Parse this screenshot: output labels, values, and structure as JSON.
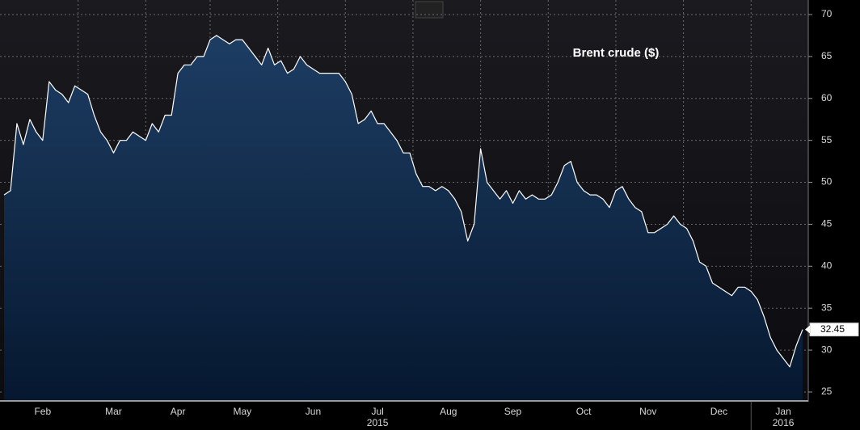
{
  "chart_data": {
    "type": "area",
    "annotation": "Brent crude ($)",
    "categories": [
      null,
      null,
      null,
      null,
      null,
      null,
      "Feb",
      null,
      null,
      null,
      null,
      null,
      null,
      null,
      null,
      null,
      null,
      "Mar",
      null,
      null,
      null,
      null,
      null,
      null,
      null,
      null,
      null,
      "Apr",
      null,
      null,
      null,
      null,
      null,
      null,
      null,
      null,
      null,
      "May",
      null,
      null,
      null,
      null,
      null,
      null,
      null,
      null,
      null,
      null,
      "Jun",
      null,
      null,
      null,
      null,
      null,
      null,
      null,
      null,
      null,
      "Jul",
      null,
      null,
      null,
      null,
      null,
      null,
      null,
      null,
      null,
      null,
      "Aug",
      null,
      null,
      null,
      null,
      null,
      null,
      null,
      null,
      null,
      "Sep",
      null,
      null,
      null,
      null,
      null,
      null,
      null,
      null,
      null,
      null,
      "Oct",
      null,
      null,
      null,
      null,
      null,
      null,
      null,
      null,
      null,
      "Nov",
      null,
      null,
      null,
      null,
      null,
      null,
      null,
      null,
      null,
      null,
      "Dec",
      null,
      null,
      null,
      null,
      null,
      null,
      null,
      null,
      null,
      "Jan",
      null,
      null,
      null
    ],
    "values": [
      48.5,
      49,
      57,
      54.5,
      57.5,
      56,
      55,
      62,
      61,
      60.5,
      59.5,
      61.5,
      61,
      60.5,
      58,
      56,
      55,
      53.5,
      55,
      55,
      56,
      55.5,
      55,
      57,
      56,
      58,
      58,
      63,
      64,
      64,
      65,
      65,
      67,
      67.5,
      67,
      66.5,
      67,
      67,
      66,
      65,
      64,
      66,
      64,
      64.5,
      63,
      63.5,
      65,
      64,
      63.5,
      63,
      63,
      63,
      63,
      62,
      60.5,
      57,
      57.5,
      58.5,
      57,
      57,
      56,
      55,
      53.5,
      53.5,
      51,
      49.5,
      49.5,
      49,
      49.5,
      49,
      48,
      46.5,
      43,
      45,
      54,
      50,
      49,
      48,
      49,
      47.5,
      49,
      48,
      48.5,
      48,
      48,
      48.5,
      50,
      52,
      52.5,
      50,
      49,
      48.5,
      48.5,
      48,
      47,
      49,
      49.5,
      48,
      47,
      46.5,
      44,
      44,
      44.5,
      45,
      46,
      45,
      44.5,
      43,
      40.5,
      40,
      38,
      37.5,
      37,
      36.5,
      37.5,
      37.5,
      37,
      36,
      34,
      31.5,
      30,
      29,
      28,
      30.5,
      32.45
    ],
    "x_group_labels": [
      "2015",
      "2016"
    ],
    "color": "#ffffff",
    "fill": "#16355a",
    "ylim": [
      25,
      70
    ],
    "yticks": [
      25,
      30,
      35,
      40,
      45,
      50,
      55,
      60,
      65,
      70
    ],
    "grid": true
  }
}
